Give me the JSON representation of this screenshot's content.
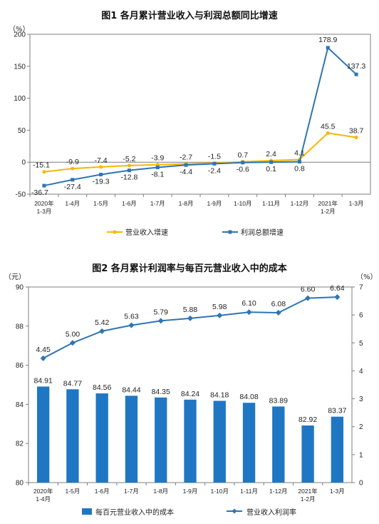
{
  "chart_data": [
    {
      "type": "line",
      "title": "图1  各月累计营业收入与利润总额同比增速",
      "yunit": "（%）",
      "ylim": [
        -50,
        200
      ],
      "yticks": [
        "-50",
        "0",
        "50",
        "100",
        "150",
        "200"
      ],
      "categories": [
        [
          "2020年",
          "1-3月"
        ],
        [
          "1-4月"
        ],
        [
          "1-5月"
        ],
        [
          "1-6月"
        ],
        [
          "1-7月"
        ],
        [
          "1-8月"
        ],
        [
          "1-9月"
        ],
        [
          "1-10月"
        ],
        [
          "1-11月"
        ],
        [
          "1-12月"
        ],
        [
          "2021年",
          "1-2月"
        ],
        [
          "1-3月"
        ]
      ],
      "series": [
        {
          "name": "营业收入增速",
          "color": "#f5b800",
          "values": [
            -15.1,
            -9.9,
            -7.4,
            -5.2,
            -3.9,
            -2.7,
            -1.5,
            0.7,
            2.4,
            4.1,
            45.5,
            38.7
          ],
          "labels": [
            "-15.1",
            "-9.9",
            "-7.4",
            "-5.2",
            "-3.9",
            "-2.7",
            "-1.5",
            "0.7",
            "2.4",
            "4.1",
            "45.5",
            "38.7"
          ]
        },
        {
          "name": "利润总额增速",
          "color": "#2e75b6",
          "values": [
            -36.7,
            -27.4,
            -19.3,
            -12.8,
            -8.1,
            -4.4,
            -2.4,
            -0.6,
            0.1,
            0.8,
            178.9,
            137.3
          ],
          "labels": [
            "-36.7",
            "-27.4",
            "-19.3",
            "-12.8",
            "-8.1",
            "-4.4",
            "-2.4",
            "-0.6",
            "0.1",
            "0.8",
            "178.9",
            "137.3"
          ]
        }
      ],
      "grid": false,
      "legend": "bottom"
    },
    {
      "type": "bar",
      "title": "图2  各月累计利润率与每百元营业收入中的成本",
      "yunit_left": "（元）",
      "yunit_right": "（%）",
      "ylim_left": [
        80,
        90
      ],
      "yticks_left": [
        "80",
        "82",
        "84",
        "86",
        "88",
        "90"
      ],
      "ylim_right": [
        0,
        7
      ],
      "yticks_right": [
        "0",
        "1",
        "2",
        "3",
        "4",
        "5",
        "6",
        "7"
      ],
      "categories": [
        [
          "2020年",
          "1-4月"
        ],
        [
          "1-5月"
        ],
        [
          "1-6月"
        ],
        [
          "1-7月"
        ],
        [
          "1-8月"
        ],
        [
          "1-9月"
        ],
        [
          "1-10月"
        ],
        [
          "1-11月"
        ],
        [
          "1-12月"
        ],
        [
          "2021年",
          "1-2月"
        ],
        [
          "1-3月"
        ]
      ],
      "bar_series": {
        "name": "每百元营业收入中的成本",
        "color": "#1f77c4",
        "axis": "left",
        "values": [
          84.91,
          84.77,
          84.56,
          84.44,
          84.35,
          84.24,
          84.18,
          84.08,
          83.89,
          82.92,
          83.37
        ],
        "labels": [
          "84.91",
          "84.77",
          "84.56",
          "84.44",
          "84.35",
          "84.24",
          "84.18",
          "84.08",
          "83.89",
          "82.92",
          "83.37"
        ]
      },
      "line_series": {
        "name": "营业收入利润率",
        "color": "#2e75b6",
        "axis": "right",
        "values": [
          4.45,
          5.0,
          5.42,
          5.63,
          5.79,
          5.88,
          5.98,
          6.1,
          6.08,
          6.6,
          6.64
        ],
        "labels": [
          "4.45",
          "5.00",
          "5.42",
          "5.63",
          "5.79",
          "5.88",
          "5.98",
          "6.10",
          "6.08",
          "6.60",
          "6.64"
        ]
      },
      "grid": false,
      "legend": "bottom"
    }
  ]
}
